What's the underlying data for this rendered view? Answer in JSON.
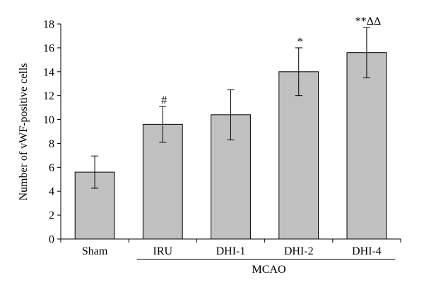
{
  "chart_data": {
    "type": "bar",
    "categories": [
      "Sham",
      "IRU",
      "DHI-1",
      "DHI-2",
      "DHI-4"
    ],
    "values": [
      5.6,
      9.6,
      10.4,
      14.0,
      15.6
    ],
    "error": [
      1.35,
      1.5,
      2.1,
      2.0,
      2.1
    ],
    "annotations": [
      "",
      "#",
      "",
      "*",
      "**ΔΔ"
    ],
    "ylabel": "Number of vWF-positive cells",
    "xlabel": "",
    "group_label": "MCAO",
    "group_categories": [
      "IRU",
      "DHI-1",
      "DHI-2",
      "DHI-4"
    ],
    "ylim": [
      0,
      18
    ],
    "yticks": [
      0,
      2,
      4,
      6,
      8,
      10,
      12,
      14,
      16,
      18
    ],
    "grid": false,
    "bar_color": "#c0c0c0",
    "edge_color": "#000000"
  }
}
